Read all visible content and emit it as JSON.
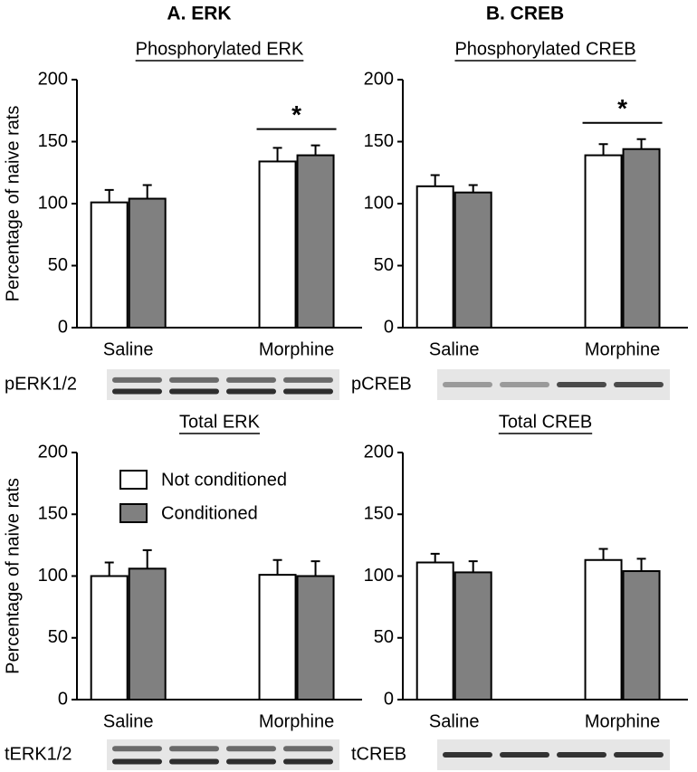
{
  "headers": [
    "A. ERK",
    "B. CREB"
  ],
  "chart_data": [
    {
      "type": "bar",
      "title": "Phosphorylated ERK",
      "y_label": "Percentage of naive rats",
      "categories": [
        "Saline",
        "Morphine"
      ],
      "ylim": [
        0,
        200
      ],
      "yticks": [
        0,
        50,
        100,
        150,
        200
      ],
      "series": [
        {
          "color": "#ffffff",
          "values": [
            101,
            134
          ],
          "errors": [
            10,
            11
          ]
        },
        {
          "color": "#808080",
          "values": [
            104,
            139
          ],
          "errors": [
            11,
            8
          ]
        }
      ],
      "annotations": [
        {
          "text": "*",
          "category": "Morphine"
        }
      ],
      "blot_label": "pERK1/2"
    },
    {
      "type": "bar",
      "title": "Phosphorylated CREB",
      "categories": [
        "Saline",
        "Morphine"
      ],
      "ylim": [
        0,
        200
      ],
      "yticks": [
        0,
        50,
        100,
        150,
        200
      ],
      "series": [
        {
          "color": "#ffffff",
          "values": [
            114,
            139
          ],
          "errors": [
            9,
            9
          ]
        },
        {
          "color": "#808080",
          "values": [
            109,
            144
          ],
          "errors": [
            6,
            8
          ]
        }
      ],
      "annotations": [
        {
          "text": "*",
          "category": "Morphine"
        }
      ],
      "blot_label": "pCREB"
    },
    {
      "type": "bar",
      "title": "Total ERK",
      "y_label": "Percentage of naive rats",
      "categories": [
        "Saline",
        "Morphine"
      ],
      "ylim": [
        0,
        200
      ],
      "yticks": [
        0,
        50,
        100,
        150,
        200
      ],
      "series": [
        {
          "name": "Not conditioned",
          "color": "#ffffff",
          "values": [
            100,
            101
          ],
          "errors": [
            11,
            12
          ]
        },
        {
          "name": "Conditioned",
          "color": "#808080",
          "values": [
            106,
            100
          ],
          "errors": [
            15,
            12
          ]
        }
      ],
      "legend": "top-left",
      "blot_label": "tERK1/2"
    },
    {
      "type": "bar",
      "title": "Total CREB",
      "categories": [
        "Saline",
        "Morphine"
      ],
      "ylim": [
        0,
        200
      ],
      "yticks": [
        0,
        50,
        100,
        150,
        200
      ],
      "series": [
        {
          "color": "#ffffff",
          "values": [
            111,
            113
          ],
          "errors": [
            7,
            9
          ]
        },
        {
          "color": "#808080",
          "values": [
            103,
            104
          ],
          "errors": [
            9,
            10
          ]
        }
      ],
      "blot_label": "tCREB"
    }
  ]
}
